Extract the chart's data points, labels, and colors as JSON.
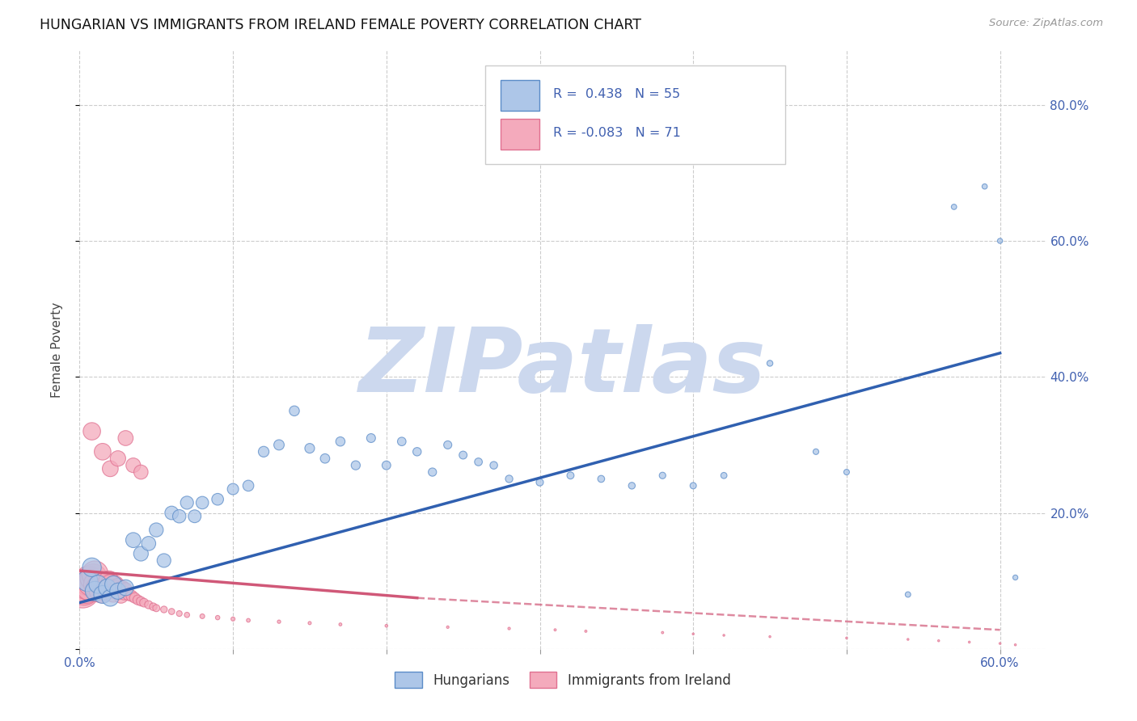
{
  "title": "HUNGARIAN VS IMMIGRANTS FROM IRELAND FEMALE POVERTY CORRELATION CHART",
  "source": "Source: ZipAtlas.com",
  "ylabel": "Female Poverty",
  "xlim": [
    0.0,
    0.63
  ],
  "ylim": [
    0.0,
    0.88
  ],
  "xticks": [
    0.0,
    0.1,
    0.2,
    0.3,
    0.4,
    0.5,
    0.6
  ],
  "xticklabels_show": [
    "0.0%",
    "60.0%"
  ],
  "yticks": [
    0.0,
    0.2,
    0.4,
    0.6,
    0.8
  ],
  "yticklabels": [
    "",
    "20.0%",
    "40.0%",
    "60.0%",
    "80.0%"
  ],
  "blue_color": "#adc6e8",
  "pink_color": "#f4aabc",
  "blue_edge_color": "#5b8cc8",
  "pink_edge_color": "#e07090",
  "blue_line_color": "#3060b0",
  "pink_line_color": "#d05878",
  "grid_color": "#cccccc",
  "background_color": "#ffffff",
  "watermark": "ZIPatlas",
  "watermark_color": "#ccd8ee",
  "legend_label1": "Hungarians",
  "legend_label2": "Immigrants from Ireland",
  "blue_line_x0": 0.0,
  "blue_line_y0": 0.068,
  "blue_line_x1": 0.6,
  "blue_line_y1": 0.435,
  "pink_line_solid_x0": 0.0,
  "pink_line_solid_y0": 0.115,
  "pink_line_solid_x1": 0.22,
  "pink_line_solid_y1": 0.075,
  "pink_line_dash_x0": 0.22,
  "pink_line_dash_y0": 0.075,
  "pink_line_dash_x1": 0.6,
  "pink_line_dash_y1": 0.028,
  "blue_scatter_x": [
    0.005,
    0.008,
    0.01,
    0.012,
    0.015,
    0.018,
    0.02,
    0.022,
    0.025,
    0.03,
    0.035,
    0.04,
    0.045,
    0.05,
    0.055,
    0.06,
    0.065,
    0.07,
    0.075,
    0.08,
    0.09,
    0.1,
    0.11,
    0.12,
    0.13,
    0.14,
    0.15,
    0.16,
    0.17,
    0.18,
    0.19,
    0.2,
    0.21,
    0.22,
    0.23,
    0.24,
    0.25,
    0.26,
    0.27,
    0.28,
    0.3,
    0.32,
    0.34,
    0.36,
    0.38,
    0.4,
    0.42,
    0.45,
    0.48,
    0.5,
    0.54,
    0.57,
    0.59,
    0.6,
    0.61
  ],
  "blue_scatter_y": [
    0.1,
    0.12,
    0.085,
    0.095,
    0.08,
    0.09,
    0.075,
    0.095,
    0.085,
    0.09,
    0.16,
    0.14,
    0.155,
    0.175,
    0.13,
    0.2,
    0.195,
    0.215,
    0.195,
    0.215,
    0.22,
    0.235,
    0.24,
    0.29,
    0.3,
    0.35,
    0.295,
    0.28,
    0.305,
    0.27,
    0.31,
    0.27,
    0.305,
    0.29,
    0.26,
    0.3,
    0.285,
    0.275,
    0.27,
    0.25,
    0.245,
    0.255,
    0.25,
    0.24,
    0.255,
    0.24,
    0.255,
    0.42,
    0.29,
    0.26,
    0.08,
    0.65,
    0.68,
    0.6,
    0.105
  ],
  "blue_scatter_size": [
    350,
    280,
    300,
    260,
    250,
    240,
    220,
    230,
    210,
    200,
    180,
    170,
    160,
    155,
    150,
    145,
    140,
    135,
    130,
    125,
    110,
    100,
    95,
    90,
    85,
    80,
    75,
    70,
    68,
    65,
    62,
    60,
    58,
    56,
    54,
    52,
    50,
    48,
    46,
    44,
    42,
    40,
    38,
    36,
    34,
    32,
    30,
    28,
    26,
    25,
    24,
    23,
    22,
    21,
    20
  ],
  "pink_scatter_x": [
    0.002,
    0.003,
    0.004,
    0.005,
    0.006,
    0.007,
    0.008,
    0.009,
    0.01,
    0.011,
    0.012,
    0.013,
    0.014,
    0.015,
    0.016,
    0.017,
    0.018,
    0.019,
    0.02,
    0.021,
    0.022,
    0.023,
    0.024,
    0.025,
    0.026,
    0.027,
    0.028,
    0.029,
    0.03,
    0.032,
    0.034,
    0.036,
    0.038,
    0.04,
    0.042,
    0.045,
    0.048,
    0.05,
    0.055,
    0.06,
    0.065,
    0.07,
    0.08,
    0.09,
    0.1,
    0.11,
    0.13,
    0.15,
    0.17,
    0.2,
    0.24,
    0.28,
    0.31,
    0.33,
    0.38,
    0.4,
    0.42,
    0.45,
    0.5,
    0.54,
    0.56,
    0.58,
    0.6,
    0.61,
    0.015,
    0.02,
    0.025,
    0.03,
    0.035,
    0.04,
    0.008
  ],
  "pink_scatter_y": [
    0.085,
    0.088,
    0.09,
    0.095,
    0.1,
    0.092,
    0.098,
    0.105,
    0.11,
    0.095,
    0.088,
    0.092,
    0.085,
    0.095,
    0.088,
    0.092,
    0.09,
    0.1,
    0.095,
    0.088,
    0.082,
    0.095,
    0.088,
    0.092,
    0.085,
    0.078,
    0.09,
    0.082,
    0.088,
    0.08,
    0.078,
    0.075,
    0.072,
    0.07,
    0.068,
    0.065,
    0.062,
    0.06,
    0.058,
    0.055,
    0.052,
    0.05,
    0.048,
    0.046,
    0.044,
    0.042,
    0.04,
    0.038,
    0.036,
    0.034,
    0.032,
    0.03,
    0.028,
    0.026,
    0.024,
    0.022,
    0.02,
    0.018,
    0.016,
    0.014,
    0.012,
    0.01,
    0.008,
    0.006,
    0.29,
    0.265,
    0.28,
    0.31,
    0.27,
    0.26,
    0.32
  ],
  "pink_scatter_size": [
    900,
    820,
    780,
    750,
    700,
    660,
    620,
    580,
    550,
    520,
    490,
    460,
    430,
    400,
    380,
    360,
    340,
    320,
    300,
    280,
    260,
    240,
    220,
    200,
    185,
    170,
    155,
    145,
    130,
    115,
    100,
    88,
    78,
    68,
    60,
    52,
    46,
    40,
    35,
    30,
    26,
    22,
    18,
    15,
    13,
    11,
    9,
    8,
    7,
    6,
    5,
    5,
    4,
    4,
    4,
    3,
    3,
    3,
    3,
    3,
    3,
    3,
    3,
    3,
    220,
    200,
    190,
    180,
    170,
    160,
    240
  ]
}
